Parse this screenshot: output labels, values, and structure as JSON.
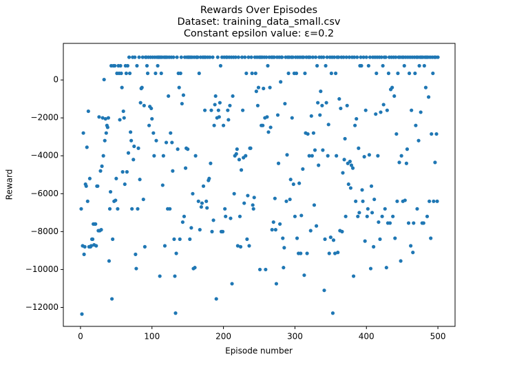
{
  "chart_data": {
    "type": "scatter",
    "title": "Rewards Over Episodes",
    "subtitle": [
      "Dataset: training_data_small.csv",
      "Constant epsilon value: ε=0.2"
    ],
    "x_label": "Episode number",
    "y_label": "Reward",
    "color": "#1f77b4",
    "xlim": [
      -24,
      524
    ],
    "ylim": [
      -13000,
      1930
    ],
    "xticks": [
      0,
      100,
      200,
      300,
      400,
      500
    ],
    "yticks": [
      {
        "value": -12000,
        "label": "−12000"
      },
      {
        "value": -10000,
        "label": "−10000"
      },
      {
        "value": -8000,
        "label": "−8000"
      },
      {
        "value": -6000,
        "label": "−6000"
      },
      {
        "value": -4000,
        "label": "−4000"
      },
      {
        "value": -2000,
        "label": "−2000"
      },
      0
    ],
    "x": [
      1,
      2,
      3,
      4,
      5,
      6,
      7,
      8,
      9,
      10,
      11,
      12,
      13,
      14,
      15,
      16,
      17,
      18,
      19,
      20,
      21,
      22,
      23,
      24,
      25,
      26,
      27,
      28,
      29,
      30,
      31,
      32,
      33,
      34,
      35,
      36,
      37,
      38,
      39,
      40,
      41,
      42,
      43,
      44,
      45,
      46,
      47,
      48,
      49,
      50,
      51,
      52,
      53,
      54,
      55,
      56,
      57,
      58,
      59,
      60,
      61,
      62,
      63,
      64,
      65,
      66,
      67,
      68,
      69,
      70,
      71,
      72,
      73,
      74,
      75,
      76,
      77,
      78,
      79,
      80,
      81,
      82,
      83,
      84,
      85,
      86,
      87,
      88,
      89,
      90,
      91,
      92,
      93,
      94,
      95,
      96,
      97,
      98,
      99,
      100,
      101,
      102,
      103,
      104,
      105,
      106,
      107,
      108,
      109,
      110,
      111,
      112,
      113,
      114,
      115,
      116,
      117,
      118,
      119,
      120,
      121,
      122,
      123,
      124,
      125,
      126,
      127,
      128,
      129,
      130,
      131,
      132,
      133,
      134,
      135,
      136,
      137,
      138,
      139,
      140,
      141,
      142,
      143,
      144,
      145,
      146,
      147,
      148,
      149,
      150,
      151,
      152,
      153,
      154,
      155,
      156,
      157,
      158,
      159,
      160,
      161,
      162,
      163,
      164,
      165,
      166,
      167,
      168,
      169,
      170,
      171,
      172,
      173,
      174,
      175,
      176,
      177,
      178,
      179,
      180,
      181,
      182,
      183,
      184,
      185,
      186,
      187,
      188,
      189,
      190,
      191,
      192,
      193,
      194,
      195,
      196,
      197,
      198,
      199,
      200,
      201,
      202,
      203,
      204,
      205,
      206,
      207,
      208,
      209,
      210,
      211,
      212,
      213,
      214,
      215,
      216,
      217,
      218,
      219,
      220,
      221,
      222,
      223,
      224,
      225,
      226,
      227,
      228,
      229,
      230,
      231,
      232,
      233,
      234,
      235,
      236,
      237,
      238,
      239,
      240,
      241,
      242,
      243,
      244,
      245,
      246,
      247,
      248,
      249,
      250,
      251,
      252,
      253,
      254,
      255,
      256,
      257,
      258,
      259,
      260,
      261,
      262,
      263,
      264,
      265,
      266,
      267,
      268,
      269,
      270,
      271,
      272,
      273,
      274,
      275,
      276,
      277,
      278,
      279,
      280,
      281,
      282,
      283,
      284,
      285,
      286,
      287,
      288,
      289,
      290,
      291,
      292,
      293,
      294,
      295,
      296,
      297,
      298,
      299,
      300,
      301,
      302,
      303,
      304,
      305,
      306,
      307,
      308,
      309,
      310,
      311,
      312,
      313,
      314,
      315,
      316,
      317,
      318,
      319,
      320,
      321,
      322,
      323,
      324,
      325,
      326,
      327,
      328,
      329,
      330,
      331,
      332,
      333,
      334,
      335,
      336,
      337,
      338,
      339,
      340,
      341,
      342,
      343,
      344,
      345,
      346,
      347,
      348,
      349,
      350,
      351,
      352,
      353,
      354,
      355,
      356,
      357,
      358,
      359,
      360,
      361,
      362,
      363,
      364,
      365,
      366,
      367,
      368,
      369,
      370,
      371,
      372,
      373,
      374,
      375,
      376,
      377,
      378,
      379,
      380,
      381,
      382,
      383,
      384,
      385,
      386,
      387,
      388,
      389,
      390,
      391,
      392,
      393,
      394,
      395,
      396,
      397,
      398,
      399,
      400,
      401,
      402,
      403,
      404,
      405,
      406,
      407,
      408,
      409,
      410,
      411,
      412,
      413,
      414,
      415,
      416,
      417,
      418,
      419,
      420,
      421,
      422,
      423,
      424,
      425,
      426,
      427,
      428,
      429,
      430,
      431,
      432,
      433,
      434,
      435,
      436,
      437,
      438,
      439,
      440,
      441,
      442,
      443,
      444,
      445,
      446,
      447,
      448,
      449,
      450,
      451,
      452,
      453,
      454,
      455,
      456,
      457,
      458,
      459,
      460,
      461,
      462,
      463,
      464,
      465,
      466,
      467,
      468,
      469,
      470,
      471,
      472,
      473,
      474,
      475,
      476,
      477,
      478,
      479,
      480,
      481,
      482,
      483,
      484,
      485,
      486,
      487,
      488,
      489,
      490,
      491,
      492,
      493,
      494,
      495,
      496,
      497,
      498,
      499,
      500
    ],
    "values": [
      -6800,
      -12350,
      -8750,
      -2800,
      -9200,
      -8800,
      -5500,
      -5600,
      -3550,
      -6400,
      -1650,
      -8800,
      -5200,
      -8800,
      -8750,
      -8400,
      -8400,
      -7600,
      -8700,
      -7600,
      -7600,
      -8750,
      -5600,
      -5600,
      -7950,
      -1950,
      -7950,
      -4800,
      -7900,
      -4550,
      -2000,
      -4000,
      20,
      -3200,
      -2050,
      -2800,
      -2400,
      -2500,
      -2000,
      -9550,
      -6800,
      -5900,
      750,
      -11550,
      -8400,
      750,
      -6400,
      750,
      -6350,
      -5200,
      350,
      -6800,
      750,
      350,
      -2100,
      750,
      350,
      -400,
      -4850,
      -1650,
      -2000,
      -5500,
      750,
      350,
      -4850,
      750,
      -3850,
      1200,
      350,
      -2750,
      -3200,
      -6800,
      1200,
      -4200,
      -3500,
      1200,
      -9200,
      -9950,
      750,
      -6800,
      -3600,
      1200,
      -5250,
      -1200,
      -450,
      -400,
      1200,
      -6300,
      -1350,
      -8800,
      1200,
      1200,
      750,
      350,
      1200,
      -2400,
      -1400,
      1200,
      -1500,
      -2050,
      1200,
      -2800,
      -4000,
      1200,
      350,
      -3200,
      1200,
      750,
      1200,
      1200,
      -10350,
      1200,
      350,
      1200,
      -5550,
      -4000,
      1200,
      -8750,
      1200,
      -3300,
      1200,
      -6800,
      -850,
      1200,
      -6800,
      -2800,
      1200,
      -3300,
      -4800,
      1200,
      -8400,
      -10350,
      -12300,
      -9150,
      1200,
      -3650,
      350,
      -400,
      -8400,
      350,
      1200,
      -1250,
      -7500,
      -800,
      -7200,
      1200,
      -4650,
      -3600,
      1200,
      -3650,
      1200,
      1200,
      -8400,
      1200,
      -7800,
      1200,
      -6000,
      -9950,
      1200,
      -9900,
      -4000,
      1200,
      1200,
      1200,
      -6400,
      350,
      -7900,
      1200,
      -6700,
      -6500,
      1200,
      -5600,
      1200,
      -1600,
      1200,
      -6400,
      -6750,
      1200,
      -5300,
      -5200,
      1200,
      -4400,
      -1600,
      -8000,
      1200,
      -7400,
      -2400,
      -1300,
      -850,
      -11550,
      -2000,
      1200,
      -1600,
      -1950,
      -1200,
      750,
      -8000,
      1200,
      -8000,
      -2400,
      1200,
      -6800,
      -7200,
      1200,
      1200,
      -1600,
      -2100,
      1200,
      -1350,
      -7300,
      1200,
      -10750,
      -850,
      1200,
      -6000,
      -4000,
      1200,
      -3900,
      -3650,
      -8750,
      1200,
      -4200,
      -7200,
      -8800,
      -4750,
      1200,
      -1600,
      -4100,
      -6500,
      1200,
      -4000,
      350,
      -8400,
      -6100,
      1200,
      -8750,
      -3600,
      -3600,
      1200,
      350,
      -6600,
      -6800,
      -6200,
      1200,
      350,
      -600,
      1200,
      -1350,
      -400,
      1200,
      -10000,
      1200,
      -2400,
      1200,
      -2400,
      -450,
      1200,
      -2000,
      -10000,
      1200,
      -1950,
      750,
      -2750,
      1200,
      -400,
      -2500,
      1200,
      -7900,
      1200,
      -7500,
      1200,
      -6250,
      -7900,
      -10750,
      1200,
      -1850,
      -4400,
      1200,
      -7600,
      -100,
      1200,
      1200,
      -8350,
      -9900,
      -8850,
      -1250,
      1200,
      -6400,
      -3950,
      1200,
      350,
      1200,
      -6300,
      -5250,
      1200,
      -2000,
      1200,
      -5500,
      350,
      -7200,
      1200,
      350,
      -8350,
      1200,
      -9150,
      -5450,
      1200,
      -9150,
      -7150,
      1200,
      -4700,
      1200,
      -10300,
      350,
      -2800,
      1200,
      -9150,
      -2850,
      1200,
      -4000,
      1200,
      -7950,
      -1900,
      -4000,
      1200,
      -2800,
      -6600,
      -3700,
      1200,
      -7700,
      750,
      -1200,
      -4500,
      1200,
      -1850,
      -600,
      1200,
      -1350,
      -3700,
      1200,
      -11100,
      -8400,
      750,
      -1200,
      1200,
      -4000,
      -2350,
      -9150,
      1200,
      -8300,
      350,
      1200,
      -12300,
      -8450,
      1200,
      -9150,
      350,
      -4000,
      1200,
      -9100,
      1200,
      -1000,
      -7950,
      -1500,
      1200,
      -8000,
      -4900,
      1200,
      -4200,
      -3100,
      -7200,
      1200,
      -1350,
      -4400,
      -5500,
      1200,
      -4300,
      -5700,
      -4500,
      1200,
      -4650,
      -10350,
      1200,
      -2400,
      -6400,
      -2050,
      1200,
      -7200,
      -3600,
      -7000,
      750,
      1200,
      750,
      -5800,
      -6400,
      1200,
      -4050,
      -8500,
      -1600,
      1200,
      -7200,
      -6800,
      750,
      -3950,
      1200,
      -9950,
      -5600,
      -7000,
      1200,
      -8800,
      -6300,
      1200,
      -1800,
      350,
      1200,
      -4000,
      -7500,
      1200,
      -8400,
      -1700,
      1200,
      -7200,
      750,
      -1300,
      1200,
      -6800,
      1200,
      -9900,
      -1600,
      -7550,
      350,
      1200,
      -7550,
      -500,
      1200,
      -400,
      -7200,
      1200,
      -850,
      -8350,
      1200,
      -2850,
      -6400,
      350,
      1200,
      -4350,
      1200,
      -9550,
      -4000,
      1200,
      -6400,
      1200,
      750,
      -6350,
      1200,
      -4400,
      -3650,
      1200,
      -7550,
      350,
      1200,
      -8750,
      -1600,
      1200,
      -9100,
      -7550,
      1200,
      350,
      -2400,
      1200,
      -6800,
      1200,
      -3200,
      750,
      1200,
      -1700,
      1200,
      -7550,
      1200,
      -7550,
      750,
      1200,
      -400,
      1200,
      -7200,
      1200,
      -900,
      -6400,
      1200,
      -8350,
      -2850,
      1200,
      350,
      -6400,
      1200,
      -4350,
      1200,
      -2850,
      -6400,
      1200
    ]
  }
}
